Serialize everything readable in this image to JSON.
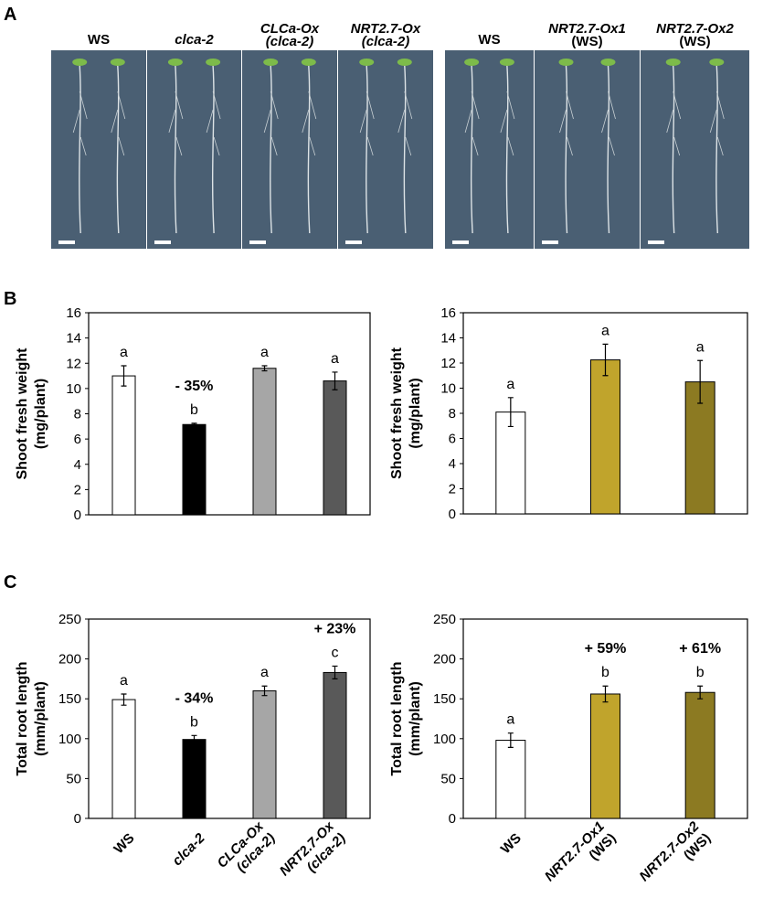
{
  "panel_labels": {
    "a": "A",
    "b": "B",
    "c": "C"
  },
  "photos": {
    "left_group": [
      {
        "label": "WS"
      },
      {
        "label": "clca-2"
      },
      {
        "label": "CLCa-Ox",
        "label2": "(clca-2)"
      },
      {
        "label": "NRT2.7-Ox",
        "label2": "(clca-2)"
      }
    ],
    "right_group": [
      {
        "label": "WS"
      },
      {
        "label": "NRT2.7-Ox1",
        "label2": "(WS)"
      },
      {
        "label": "NRT2.7-Ox2",
        "label2": "(WS)"
      }
    ],
    "background_color": "#4a5f73"
  },
  "chart_data": [
    {
      "type": "bar",
      "panel": "B",
      "ylabel": "Shoot fresh weight",
      "ylabel2": "(mg/plant)",
      "ylim": [
        0,
        16
      ],
      "yticks": [
        0,
        2,
        4,
        6,
        8,
        10,
        12,
        14,
        16
      ],
      "categories": [
        "WS",
        "clca-2",
        "CLCa-Ox (clca-2)",
        "NRT2.7-Ox (clca-2)"
      ],
      "values": [
        11.0,
        7.15,
        11.6,
        10.6
      ],
      "errors": [
        0.8,
        0.1,
        0.2,
        0.7
      ],
      "letters": [
        "a",
        "b",
        "a",
        "a"
      ],
      "annotations": [
        "",
        "- 35%",
        "",
        ""
      ],
      "colors": [
        "#ffffff",
        "#000000",
        "#a6a6a6",
        "#595959"
      ]
    },
    {
      "type": "bar",
      "panel": "B",
      "ylabel": "Shoot fresh weight",
      "ylabel2": "(mg/plant)",
      "ylim": [
        0,
        16
      ],
      "yticks": [
        0,
        2,
        4,
        6,
        8,
        10,
        12,
        14,
        16
      ],
      "categories": [
        "WS",
        "NRT2.7-Ox1 (WS)",
        "NRT2.7-Ox2 (WS)"
      ],
      "values": [
        8.1,
        12.25,
        10.5
      ],
      "errors": [
        1.15,
        1.25,
        1.7
      ],
      "letters": [
        "a",
        "a",
        "a"
      ],
      "annotations": [
        "",
        "",
        ""
      ],
      "colors": [
        "#ffffff",
        "#c0a42c",
        "#8c7a22"
      ]
    },
    {
      "type": "bar",
      "panel": "C",
      "ylabel": "Total root length",
      "ylabel2": "(mm/plant)",
      "ylim": [
        0,
        250
      ],
      "yticks": [
        0,
        50,
        100,
        150,
        200,
        250
      ],
      "categories": [
        "WS",
        "clca-2",
        "CLCa-Ox (clca-2)",
        "NRT2.7-Ox (clca-2)"
      ],
      "xticklabels": [
        [
          "WS"
        ],
        [
          "clca-2"
        ],
        [
          "CLCa-Ox",
          "(clca-2)"
        ],
        [
          "NRT2.7-Ox",
          "(clca-2)"
        ]
      ],
      "values": [
        149,
        99,
        160,
        183
      ],
      "errors": [
        7,
        5,
        6,
        8
      ],
      "letters": [
        "a",
        "b",
        "a",
        "c"
      ],
      "annotations": [
        "",
        "- 34%",
        "",
        "+ 23%"
      ],
      "colors": [
        "#ffffff",
        "#000000",
        "#a6a6a6",
        "#595959"
      ]
    },
    {
      "type": "bar",
      "panel": "C",
      "ylabel": "Total root length",
      "ylabel2": "(mm/plant)",
      "ylim": [
        0,
        250
      ],
      "yticks": [
        0,
        50,
        100,
        150,
        200,
        250
      ],
      "categories": [
        "WS",
        "NRT2.7-Ox1 (WS)",
        "NRT2.7-Ox2 (WS)"
      ],
      "xticklabels": [
        [
          "WS"
        ],
        [
          "NRT2.7-Ox1",
          "(WS)"
        ],
        [
          "NRT2.7-Ox2",
          "(WS)"
        ]
      ],
      "values": [
        98,
        156,
        158
      ],
      "errors": [
        9,
        10,
        8
      ],
      "letters": [
        "a",
        "b",
        "b"
      ],
      "annotations": [
        "",
        "+ 59%",
        "+ 61%"
      ],
      "colors": [
        "#ffffff",
        "#c0a42c",
        "#8c7a22"
      ]
    }
  ]
}
